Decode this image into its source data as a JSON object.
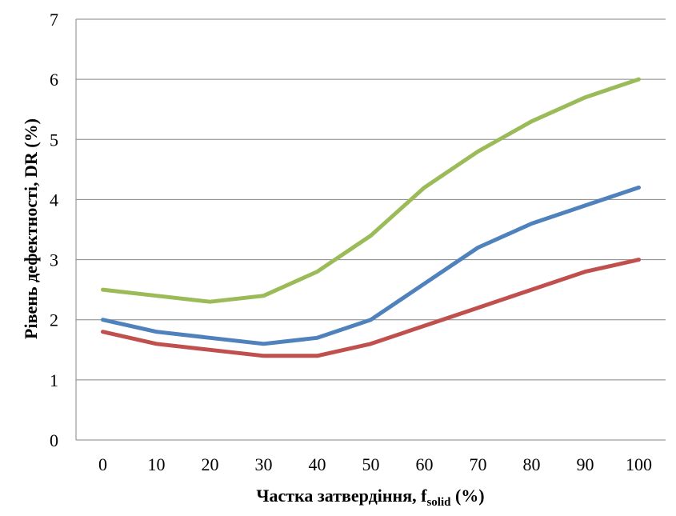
{
  "chart_data": {
    "type": "line",
    "title": "",
    "xlabel": "Частка затвердіння, f",
    "xlabel_sub": "solid",
    "xlabel_suffix": " (%)",
    "ylabel": "Рівень дефектності, DR (%)",
    "x": [
      0,
      10,
      20,
      30,
      40,
      50,
      60,
      70,
      80,
      90,
      100
    ],
    "ylim": [
      0,
      7
    ],
    "yticks": [
      0,
      1,
      2,
      3,
      4,
      5,
      6,
      7
    ],
    "grid": true,
    "legend": "none",
    "series": [
      {
        "color": "#9bbb59",
        "values": [
          2.5,
          2.4,
          2.3,
          2.4,
          2.8,
          3.4,
          4.2,
          4.8,
          5.3,
          5.7,
          6.0
        ]
      },
      {
        "color": "#4f81bd",
        "values": [
          2.0,
          1.8,
          1.7,
          1.6,
          1.7,
          2.0,
          2.6,
          3.2,
          3.6,
          3.9,
          4.2
        ]
      },
      {
        "color": "#c0504d",
        "values": [
          1.8,
          1.6,
          1.5,
          1.4,
          1.4,
          1.6,
          1.9,
          2.2,
          2.5,
          2.8,
          3.0
        ]
      }
    ]
  }
}
